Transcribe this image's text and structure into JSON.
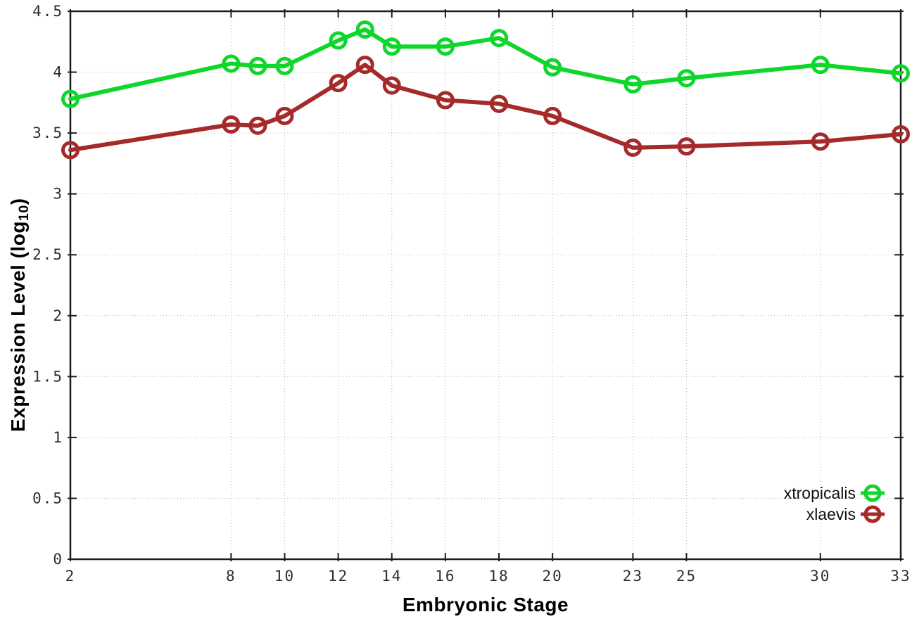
{
  "page": {
    "background": "#ffffff"
  },
  "axis": {
    "xlabel": "Embryonic Stage",
    "ylabel_prefix": "Expression Level (log",
    "ylabel_sub": "10",
    "ylabel_suffix": ")"
  },
  "style": {
    "grid_color": "#b8b8b8",
    "border_color": "#1c1c1c",
    "tick_label_color": "#2e2e2e",
    "legend_text_color": "#111111"
  },
  "chart_data": {
    "type": "line",
    "title": "",
    "xlabel": "Embryonic Stage",
    "ylabel": "Expression Level (log10)",
    "xlim": [
      2,
      33
    ],
    "ylim": [
      0,
      4.5
    ],
    "grid": true,
    "legend_position": "bottom-right",
    "x": [
      2,
      8,
      9,
      10,
      12,
      13,
      14,
      16,
      18,
      20,
      23,
      25,
      30,
      33
    ],
    "x_tick_values": [
      2,
      8,
      10,
      12,
      14,
      16,
      18,
      20,
      23,
      25,
      30,
      33
    ],
    "x_tick_labels": [
      "2",
      "8",
      "10",
      "12",
      "14",
      "16",
      "18",
      "20",
      "23",
      "25",
      "30",
      "33"
    ],
    "y_tick_values": [
      0,
      0.5,
      1,
      1.5,
      2,
      2.5,
      3,
      3.5,
      4,
      4.5
    ],
    "y_tick_labels": [
      "0",
      "0.5",
      "1",
      "1.5",
      "2",
      "2.5",
      "3",
      "3.5",
      "4",
      "4.5"
    ],
    "series": [
      {
        "name": "xtropicalis",
        "color": "#0fd62a",
        "marker": "open-circle",
        "values": [
          3.78,
          4.07,
          4.05,
          4.05,
          4.26,
          4.35,
          4.21,
          4.21,
          4.28,
          4.04,
          3.9,
          3.95,
          4.06,
          3.99
        ]
      },
      {
        "name": "xlaevis",
        "color": "#a52a2a",
        "marker": "open-circle",
        "values": [
          3.36,
          3.57,
          3.56,
          3.64,
          3.91,
          4.06,
          3.89,
          3.77,
          3.74,
          3.64,
          3.38,
          3.39,
          3.43,
          3.49
        ]
      }
    ]
  }
}
